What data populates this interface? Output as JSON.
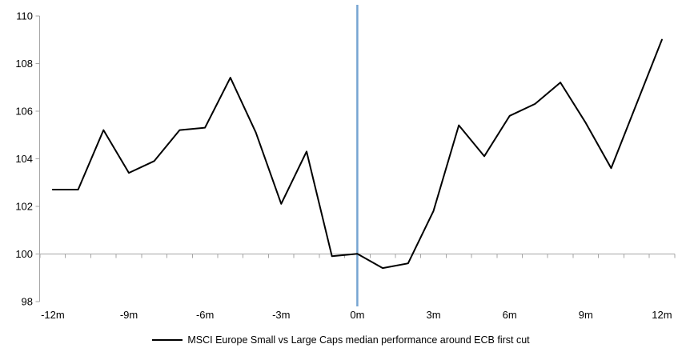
{
  "chart_data": {
    "type": "line",
    "title": "",
    "legend": "MSCI Europe Small vs Large Caps median performance around ECB first cut",
    "legend_position": "bottom",
    "grid": false,
    "x": [
      -12,
      -11,
      -10,
      -9,
      -8,
      -7,
      -6,
      -5,
      -4,
      -3,
      -2,
      -1,
      0,
      1,
      2,
      3,
      4,
      5,
      6,
      7,
      8,
      9,
      10,
      11,
      12
    ],
    "series": [
      {
        "name": "MSCI Europe Small vs Large Caps median performance around ECB first cut",
        "color": "#000000",
        "values": [
          102.7,
          102.7,
          105.2,
          103.4,
          103.9,
          105.2,
          105.3,
          107.4,
          105.1,
          102.1,
          104.3,
          99.9,
          100.0,
          99.4,
          99.6,
          101.8,
          105.4,
          104.1,
          105.8,
          106.3,
          107.2,
          105.5,
          103.6,
          106.3,
          109.0
        ]
      }
    ],
    "ylim": [
      98,
      110
    ],
    "y_ticks": [
      98,
      100,
      102,
      104,
      106,
      108,
      110
    ],
    "y_tick_labels": [
      "98",
      "100",
      "102",
      "104",
      "106",
      "108",
      "110"
    ],
    "x_tick_positions": [
      -12,
      -9,
      -6,
      -3,
      0,
      3,
      6,
      9,
      12
    ],
    "x_tick_labels": [
      "-12m",
      "-9m",
      "-6m",
      "-3m",
      "0m",
      "3m",
      "6m",
      "9m",
      "12m"
    ],
    "axis_cross_value": 100,
    "event_line": {
      "x": 0,
      "color": "#76a5d2"
    },
    "axis_color": "#a6a6a6"
  }
}
